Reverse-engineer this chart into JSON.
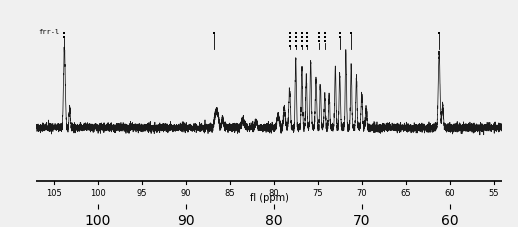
{
  "title": "",
  "xlabel": "fl (ppm)",
  "ylabel": "",
  "xlim_left": 107,
  "xlim_right": 54,
  "background_color": "#f0f0f0",
  "spectrum_color": "#1a1a1a",
  "tick_labels": [
    105,
    100,
    95,
    90,
    85,
    80,
    75,
    70,
    65,
    60,
    55
  ],
  "label_text": "frr-l",
  "noise_seed": 42,
  "noise_amplitude": 0.018,
  "baseline": 0.0,
  "fig_width": 5.18,
  "fig_height": 2.27,
  "dpi": 100
}
